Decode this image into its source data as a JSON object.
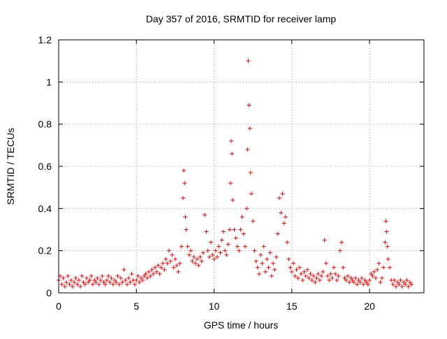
{
  "chart_data": {
    "type": "scatter",
    "title": "Day 357 of 2016, SRMTID for receiver lamp",
    "xlabel": "GPS time / hours",
    "ylabel": "SRMTID / TECUs",
    "xlim": [
      0,
      23.5
    ],
    "ylim": [
      0,
      1.2
    ],
    "x_ticks": [
      0,
      5,
      10,
      15,
      20
    ],
    "x_tick_labels": [
      "0",
      "5",
      "10",
      "15",
      "20"
    ],
    "y_ticks": [
      0,
      0.2,
      0.4,
      0.6,
      0.8,
      1.0,
      1.2
    ],
    "y_tick_labels": [
      "0",
      "0.2",
      "0.4",
      "0.6",
      "0.8",
      "1",
      "1.2"
    ],
    "grid": true,
    "marker": "+",
    "series": [
      {
        "name": "SRMTID",
        "color": "#ff0000",
        "points": [
          [
            0.0,
            0.06
          ],
          [
            0.1,
            0.08
          ],
          [
            0.2,
            0.04
          ],
          [
            0.3,
            0.07
          ],
          [
            0.4,
            0.03
          ],
          [
            0.5,
            0.05
          ],
          [
            0.6,
            0.08
          ],
          [
            0.7,
            0.04
          ],
          [
            0.8,
            0.06
          ],
          [
            0.9,
            0.03
          ],
          [
            1.0,
            0.05
          ],
          [
            1.1,
            0.07
          ],
          [
            1.2,
            0.04
          ],
          [
            1.3,
            0.06
          ],
          [
            1.4,
            0.03
          ],
          [
            1.5,
            0.08
          ],
          [
            1.6,
            0.05
          ],
          [
            1.7,
            0.04
          ],
          [
            1.8,
            0.07
          ],
          [
            1.9,
            0.05
          ],
          [
            2.0,
            0.06
          ],
          [
            2.1,
            0.08
          ],
          [
            2.2,
            0.04
          ],
          [
            2.3,
            0.06
          ],
          [
            2.4,
            0.05
          ],
          [
            2.5,
            0.07
          ],
          [
            2.6,
            0.04
          ],
          [
            2.7,
            0.06
          ],
          [
            2.8,
            0.08
          ],
          [
            2.9,
            0.05
          ],
          [
            3.0,
            0.04
          ],
          [
            3.1,
            0.06
          ],
          [
            3.2,
            0.08
          ],
          [
            3.3,
            0.05
          ],
          [
            3.4,
            0.07
          ],
          [
            3.5,
            0.04
          ],
          [
            3.6,
            0.06
          ],
          [
            3.7,
            0.05
          ],
          [
            3.8,
            0.08
          ],
          [
            3.9,
            0.04
          ],
          [
            4.0,
            0.07
          ],
          [
            4.1,
            0.05
          ],
          [
            4.2,
            0.11
          ],
          [
            4.3,
            0.06
          ],
          [
            4.4,
            0.04
          ],
          [
            4.5,
            0.07
          ],
          [
            4.6,
            0.05
          ],
          [
            4.7,
            0.09
          ],
          [
            4.8,
            0.06
          ],
          [
            4.9,
            0.04
          ],
          [
            5.0,
            0.06
          ],
          [
            5.1,
            0.08
          ],
          [
            5.2,
            0.05
          ],
          [
            5.3,
            0.07
          ],
          [
            5.4,
            0.06
          ],
          [
            5.5,
            0.08
          ],
          [
            5.6,
            0.09
          ],
          [
            5.7,
            0.07
          ],
          [
            5.8,
            0.1
          ],
          [
            5.9,
            0.08
          ],
          [
            6.0,
            0.11
          ],
          [
            6.1,
            0.09
          ],
          [
            6.2,
            0.12
          ],
          [
            6.3,
            0.1
          ],
          [
            6.4,
            0.13
          ],
          [
            6.5,
            0.09
          ],
          [
            6.6,
            0.12
          ],
          [
            6.7,
            0.14
          ],
          [
            6.8,
            0.11
          ],
          [
            6.9,
            0.16
          ],
          [
            7.0,
            0.14
          ],
          [
            7.1,
            0.2
          ],
          [
            7.2,
            0.15
          ],
          [
            7.3,
            0.18
          ],
          [
            7.4,
            0.12
          ],
          [
            7.5,
            0.16
          ],
          [
            7.6,
            0.13
          ],
          [
            7.7,
            0.1
          ],
          [
            7.8,
            0.14
          ],
          [
            7.9,
            0.22
          ],
          [
            8.0,
            0.45
          ],
          [
            8.05,
            0.58
          ],
          [
            8.1,
            0.52
          ],
          [
            8.15,
            0.36
          ],
          [
            8.2,
            0.3
          ],
          [
            8.3,
            0.22
          ],
          [
            8.4,
            0.18
          ],
          [
            8.5,
            0.2
          ],
          [
            8.6,
            0.15
          ],
          [
            8.7,
            0.17
          ],
          [
            8.8,
            0.14
          ],
          [
            8.9,
            0.16
          ],
          [
            9.0,
            0.13
          ],
          [
            9.1,
            0.17
          ],
          [
            9.2,
            0.15
          ],
          [
            9.3,
            0.19
          ],
          [
            9.4,
            0.37
          ],
          [
            9.5,
            0.29
          ],
          [
            9.6,
            0.2
          ],
          [
            9.7,
            0.17
          ],
          [
            9.8,
            0.24
          ],
          [
            9.9,
            0.18
          ],
          [
            10.0,
            0.16
          ],
          [
            10.1,
            0.2
          ],
          [
            10.2,
            0.17
          ],
          [
            10.3,
            0.22
          ],
          [
            10.4,
            0.19
          ],
          [
            10.5,
            0.25
          ],
          [
            10.6,
            0.29
          ],
          [
            10.7,
            0.2
          ],
          [
            10.8,
            0.18
          ],
          [
            10.9,
            0.23
          ],
          [
            11.0,
            0.3
          ],
          [
            11.05,
            0.52
          ],
          [
            11.1,
            0.72
          ],
          [
            11.15,
            0.66
          ],
          [
            11.2,
            0.44
          ],
          [
            11.3,
            0.3
          ],
          [
            11.4,
            0.26
          ],
          [
            11.5,
            0.22
          ],
          [
            11.6,
            0.2
          ],
          [
            11.7,
            0.3
          ],
          [
            11.8,
            0.36
          ],
          [
            11.9,
            0.28
          ],
          [
            12.0,
            0.22
          ],
          [
            12.1,
            0.4
          ],
          [
            12.15,
            0.68
          ],
          [
            12.2,
            1.1
          ],
          [
            12.25,
            0.89
          ],
          [
            12.3,
            0.78
          ],
          [
            12.35,
            0.57
          ],
          [
            12.4,
            0.47
          ],
          [
            12.5,
            0.34
          ],
          [
            12.6,
            0.2
          ],
          [
            12.7,
            0.15
          ],
          [
            12.8,
            0.12
          ],
          [
            12.9,
            0.09
          ],
          [
            13.0,
            0.18
          ],
          [
            13.1,
            0.14
          ],
          [
            13.2,
            0.22
          ],
          [
            13.3,
            0.1
          ],
          [
            13.4,
            0.16
          ],
          [
            13.5,
            0.12
          ],
          [
            13.6,
            0.19
          ],
          [
            13.7,
            0.08
          ],
          [
            13.8,
            0.14
          ],
          [
            13.9,
            0.11
          ],
          [
            14.0,
            0.17
          ],
          [
            14.1,
            0.28
          ],
          [
            14.2,
            0.45
          ],
          [
            14.3,
            0.38
          ],
          [
            14.4,
            0.47
          ],
          [
            14.5,
            0.33
          ],
          [
            14.6,
            0.36
          ],
          [
            14.7,
            0.24
          ],
          [
            14.8,
            0.16
          ],
          [
            14.9,
            0.12
          ],
          [
            15.0,
            0.1
          ],
          [
            15.1,
            0.14
          ],
          [
            15.2,
            0.08
          ],
          [
            15.3,
            0.11
          ],
          [
            15.4,
            0.07
          ],
          [
            15.5,
            0.12
          ],
          [
            15.6,
            0.09
          ],
          [
            15.7,
            0.06
          ],
          [
            15.8,
            0.1
          ],
          [
            15.9,
            0.08
          ],
          [
            16.0,
            0.11
          ],
          [
            16.1,
            0.07
          ],
          [
            16.2,
            0.09
          ],
          [
            16.3,
            0.06
          ],
          [
            16.4,
            0.08
          ],
          [
            16.5,
            0.05
          ],
          [
            16.6,
            0.07
          ],
          [
            16.7,
            0.09
          ],
          [
            16.8,
            0.06
          ],
          [
            16.9,
            0.08
          ],
          [
            17.0,
            0.1
          ],
          [
            17.1,
            0.25
          ],
          [
            17.2,
            0.14
          ],
          [
            17.3,
            0.08
          ],
          [
            17.4,
            0.06
          ],
          [
            17.5,
            0.09
          ],
          [
            17.6,
            0.07
          ],
          [
            17.7,
            0.12
          ],
          [
            17.8,
            0.09
          ],
          [
            17.9,
            0.06
          ],
          [
            18.0,
            0.08
          ],
          [
            18.1,
            0.2
          ],
          [
            18.2,
            0.24
          ],
          [
            18.3,
            0.12
          ],
          [
            18.4,
            0.07
          ],
          [
            18.5,
            0.06
          ],
          [
            18.6,
            0.08
          ],
          [
            18.7,
            0.05
          ],
          [
            18.8,
            0.07
          ],
          [
            18.9,
            0.06
          ],
          [
            19.0,
            0.05
          ],
          [
            19.1,
            0.07
          ],
          [
            19.2,
            0.04
          ],
          [
            19.3,
            0.06
          ],
          [
            19.4,
            0.05
          ],
          [
            19.5,
            0.07
          ],
          [
            19.6,
            0.04
          ],
          [
            19.7,
            0.06
          ],
          [
            19.8,
            0.05
          ],
          [
            19.9,
            0.04
          ],
          [
            20.0,
            0.06
          ],
          [
            20.1,
            0.09
          ],
          [
            20.2,
            0.08
          ],
          [
            20.3,
            0.1
          ],
          [
            20.4,
            0.07
          ],
          [
            20.5,
            0.11
          ],
          [
            20.6,
            0.14
          ],
          [
            20.7,
            0.05
          ],
          [
            20.8,
            0.07
          ],
          [
            20.9,
            0.12
          ],
          [
            21.0,
            0.24
          ],
          [
            21.05,
            0.34
          ],
          [
            21.1,
            0.29
          ],
          [
            21.15,
            0.22
          ],
          [
            21.2,
            0.16
          ],
          [
            21.3,
            0.12
          ],
          [
            21.4,
            0.06
          ],
          [
            21.5,
            0.04
          ],
          [
            21.6,
            0.06
          ],
          [
            21.7,
            0.03
          ],
          [
            21.8,
            0.05
          ],
          [
            21.9,
            0.04
          ],
          [
            22.0,
            0.06
          ],
          [
            22.1,
            0.03
          ],
          [
            22.2,
            0.05
          ],
          [
            22.3,
            0.04
          ],
          [
            22.4,
            0.06
          ],
          [
            22.5,
            0.03
          ],
          [
            22.6,
            0.05
          ],
          [
            22.7,
            0.04
          ]
        ]
      }
    ]
  }
}
